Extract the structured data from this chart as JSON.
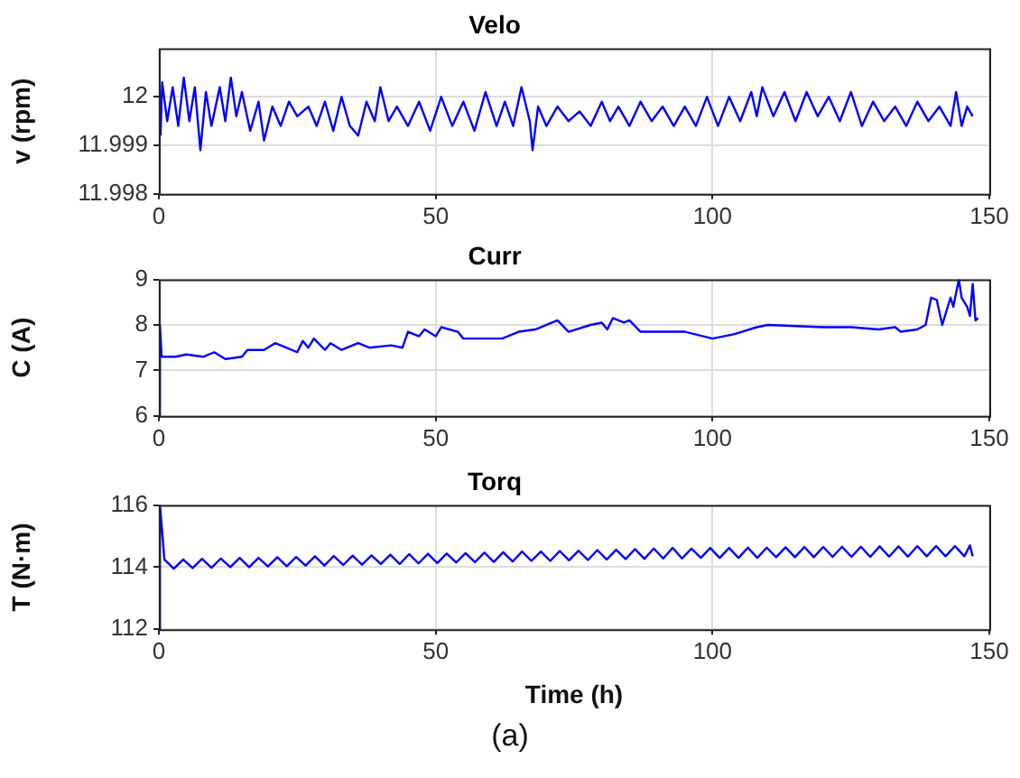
{
  "chart_data": [
    {
      "type": "line",
      "title": "Velo",
      "ylabel": "v (rpm)",
      "xlim": [
        0,
        150
      ],
      "xticks": [
        0,
        50,
        100,
        150
      ],
      "ylim": [
        11.998,
        12.001
      ],
      "yticks": [
        11.998,
        11.999,
        12
      ],
      "grid": true,
      "marker": "none",
      "line_style": "solid",
      "series": [
        {
          "color": "#0000ff",
          "x": [
            0.3,
            0.6,
            1.5,
            2.5,
            3.5,
            4.5,
            5.5,
            6.5,
            7.5,
            8.5,
            9.5,
            11,
            12,
            13,
            14,
            15,
            16.5,
            18,
            19,
            20.5,
            22,
            23.5,
            25,
            27,
            28.5,
            30,
            31.5,
            33,
            34.5,
            36,
            37.5,
            39,
            40,
            41.5,
            43,
            45,
            47,
            49,
            51,
            53,
            55,
            57,
            59,
            61,
            62.5,
            64,
            65.5,
            67,
            67.5,
            68.5,
            70,
            72,
            74,
            76,
            78,
            80,
            81.5,
            83,
            85,
            87,
            89,
            91,
            93,
            95,
            97,
            99,
            101,
            103,
            105,
            107,
            108,
            109,
            111,
            113,
            115,
            117,
            119,
            121,
            123,
            125,
            127,
            129,
            131,
            133,
            135,
            137,
            139,
            141,
            143,
            144,
            145,
            146,
            147
          ],
          "values": [
            11.9992,
            12.0003,
            11.9995,
            12.0002,
            11.9994,
            12.0004,
            11.9995,
            12.0002,
            11.9989,
            12.0001,
            11.9994,
            12.0002,
            11.9995,
            12.0004,
            11.9996,
            12.0001,
            11.9993,
            11.9999,
            11.9991,
            11.9998,
            11.9994,
            11.9999,
            11.9996,
            11.9998,
            11.9994,
            11.9999,
            11.9993,
            12.0,
            11.9994,
            11.9992,
            11.9999,
            11.9995,
            12.0002,
            11.9995,
            11.9998,
            11.9994,
            11.9999,
            11.9993,
            12.0,
            11.9994,
            11.9999,
            11.9993,
            12.0001,
            11.9994,
            11.9999,
            11.9994,
            12.0002,
            11.9995,
            11.9989,
            11.9998,
            11.9994,
            11.9998,
            11.9995,
            11.9997,
            11.9994,
            11.9999,
            11.9995,
            11.9998,
            11.9994,
            11.9999,
            11.9995,
            11.9998,
            11.9994,
            11.9998,
            11.9994,
            12.0,
            11.9994,
            12.0,
            11.9995,
            12.0001,
            11.9996,
            12.0002,
            11.9996,
            12.0001,
            11.9995,
            12.0001,
            11.9996,
            12.0,
            11.9995,
            12.0001,
            11.9994,
            11.9999,
            11.9995,
            11.9998,
            11.9994,
            11.9999,
            11.9995,
            11.9998,
            11.9994,
            12.0001,
            11.9994,
            11.9998,
            11.9996
          ]
        }
      ]
    },
    {
      "type": "line",
      "title": "Curr",
      "ylabel": "C (A)",
      "xlim": [
        0,
        150
      ],
      "xticks": [
        0,
        50,
        100,
        150
      ],
      "ylim": [
        6,
        9
      ],
      "yticks": [
        6,
        7,
        8,
        9
      ],
      "grid": true,
      "marker": "none",
      "line_style": "solid",
      "series": [
        {
          "color": "#0000ff",
          "x": [
            0,
            0.2,
            0.5,
            3,
            5,
            8,
            10,
            12,
            15,
            16,
            19,
            21,
            23,
            25,
            26,
            27,
            28,
            30,
            31,
            33,
            36,
            38,
            42,
            44,
            45,
            47,
            48,
            50,
            51,
            54,
            55,
            58,
            62,
            65,
            68,
            72,
            74,
            78,
            80,
            81,
            82,
            84,
            85,
            87,
            90,
            95,
            100,
            104,
            108,
            110,
            120,
            125,
            130,
            133,
            134,
            137,
            138.5,
            139.5,
            140.5,
            141.5,
            142,
            143,
            143.5,
            144.5,
            145,
            146,
            146.5,
            147,
            147.5,
            148
          ],
          "values": [
            6,
            8,
            7.3,
            7.3,
            7.35,
            7.3,
            7.4,
            7.25,
            7.3,
            7.45,
            7.45,
            7.6,
            7.5,
            7.4,
            7.65,
            7.5,
            7.7,
            7.45,
            7.6,
            7.45,
            7.6,
            7.5,
            7.55,
            7.5,
            7.85,
            7.75,
            7.9,
            7.75,
            7.95,
            7.85,
            7.7,
            7.7,
            7.7,
            7.85,
            7.9,
            8.1,
            7.85,
            8.0,
            8.05,
            7.9,
            8.15,
            8.05,
            8.1,
            7.85,
            7.85,
            7.85,
            7.7,
            7.8,
            7.95,
            8.0,
            7.95,
            7.95,
            7.9,
            7.95,
            7.85,
            7.9,
            8.0,
            8.6,
            8.55,
            8.0,
            8.2,
            8.6,
            8.4,
            9.0,
            8.6,
            8.4,
            8.2,
            8.9,
            8.1,
            8.15
          ]
        }
      ]
    },
    {
      "type": "line",
      "title": "Torq",
      "ylabel": "T (N·m)",
      "xlabel": "Time (h)",
      "xlim": [
        0,
        150
      ],
      "xticks": [
        0,
        50,
        100,
        150
      ],
      "ylim": [
        112,
        116
      ],
      "yticks": [
        112,
        114,
        116
      ],
      "grid": true,
      "marker": "none",
      "line_style": "solid",
      "annotations": [
        "(a)"
      ],
      "series": [
        {
          "color": "#0000ff",
          "x": [
            0,
            0.2,
            1,
            2.7,
            4.4,
            6.1,
            7.8,
            9.5,
            11.2,
            12.9,
            14.6,
            16.3,
            18,
            19.7,
            21.4,
            23.1,
            24.8,
            26.5,
            28.2,
            29.9,
            31.6,
            33.3,
            35,
            36.7,
            38.4,
            40.1,
            41.8,
            43.5,
            45.2,
            46.9,
            48.6,
            50.3,
            52,
            53.7,
            55.4,
            57.1,
            58.8,
            60.5,
            62.2,
            63.9,
            65.6,
            67.3,
            69,
            70.7,
            72.4,
            74.1,
            75.8,
            77.5,
            79.2,
            80.9,
            82.6,
            84.3,
            86,
            87.7,
            89.4,
            91.1,
            92.8,
            94.5,
            96.2,
            97.9,
            99.6,
            101.3,
            103,
            104.7,
            106.4,
            108.1,
            109.8,
            111.5,
            113.2,
            114.9,
            116.6,
            118.3,
            120,
            121.7,
            123.4,
            125.1,
            126.8,
            128.5,
            130.2,
            131.9,
            133.6,
            135.3,
            137,
            138.7,
            140.4,
            142.1,
            143.8,
            145.5,
            146.5,
            147
          ],
          "values": [
            112,
            116,
            114.25,
            113.95,
            114.25,
            113.97,
            114.27,
            113.98,
            114.28,
            114.0,
            114.3,
            114.0,
            114.3,
            114.02,
            114.32,
            114.03,
            114.33,
            114.05,
            114.35,
            114.05,
            114.36,
            114.07,
            114.37,
            114.08,
            114.38,
            114.1,
            114.4,
            114.1,
            114.42,
            114.12,
            114.43,
            114.13,
            114.44,
            114.15,
            114.45,
            114.16,
            114.47,
            114.17,
            114.48,
            114.18,
            114.5,
            114.2,
            114.5,
            114.2,
            114.52,
            114.22,
            114.53,
            114.23,
            114.55,
            114.25,
            114.56,
            114.26,
            114.58,
            114.27,
            114.6,
            114.28,
            114.62,
            114.28,
            114.6,
            114.3,
            114.62,
            114.3,
            114.62,
            114.3,
            114.63,
            114.3,
            114.63,
            114.32,
            114.64,
            114.32,
            114.65,
            114.32,
            114.65,
            114.33,
            114.66,
            114.33,
            114.66,
            114.33,
            114.67,
            114.34,
            114.67,
            114.34,
            114.68,
            114.35,
            114.68,
            114.35,
            114.68,
            114.35,
            114.7,
            114.35
          ]
        }
      ]
    }
  ]
}
